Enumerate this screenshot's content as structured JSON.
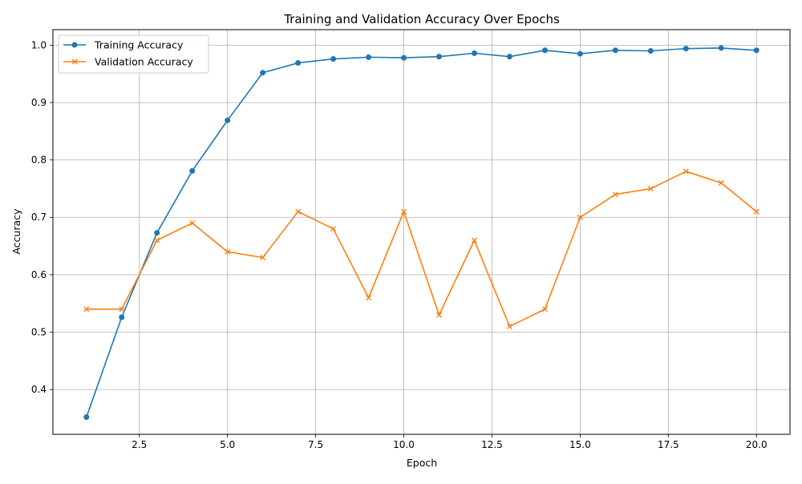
{
  "chart_data": {
    "type": "line",
    "title": "Training and Validation Accuracy Over Epochs",
    "xlabel": "Epoch",
    "ylabel": "Accuracy",
    "xlim": [
      0.05,
      20.95
    ],
    "ylim": [
      0.322,
      1.027
    ],
    "xticks": [
      2.5,
      5.0,
      7.5,
      10.0,
      12.5,
      15.0,
      17.5,
      20.0
    ],
    "xtick_labels": [
      "2.5",
      "5.0",
      "7.5",
      "10.0",
      "12.5",
      "15.0",
      "17.5",
      "20.0"
    ],
    "yticks": [
      0.4,
      0.5,
      0.6,
      0.7,
      0.8,
      0.9,
      1.0
    ],
    "ytick_labels": [
      "0.4",
      "0.5",
      "0.6",
      "0.7",
      "0.8",
      "0.9",
      "1.0"
    ],
    "grid": true,
    "legend_position": "upper-left",
    "x": [
      1,
      2,
      3,
      4,
      5,
      6,
      7,
      8,
      9,
      10,
      11,
      12,
      13,
      14,
      15,
      16,
      17,
      18,
      19,
      20
    ],
    "series": [
      {
        "name": "Training Accuracy",
        "color": "#1f77b4",
        "marker": "circle",
        "values": [
          0.352,
          0.526,
          0.673,
          0.781,
          0.869,
          0.952,
          0.969,
          0.976,
          0.979,
          0.978,
          0.98,
          0.986,
          0.98,
          0.991,
          0.985,
          0.991,
          0.99,
          0.994,
          0.995,
          0.991
        ]
      },
      {
        "name": "Validation Accuracy",
        "color": "#ff7f0e",
        "marker": "x",
        "values": [
          0.54,
          0.54,
          0.66,
          0.69,
          0.64,
          0.63,
          0.71,
          0.68,
          0.56,
          0.71,
          0.53,
          0.66,
          0.51,
          0.54,
          0.7,
          0.74,
          0.75,
          0.78,
          0.76,
          0.71
        ]
      }
    ]
  }
}
